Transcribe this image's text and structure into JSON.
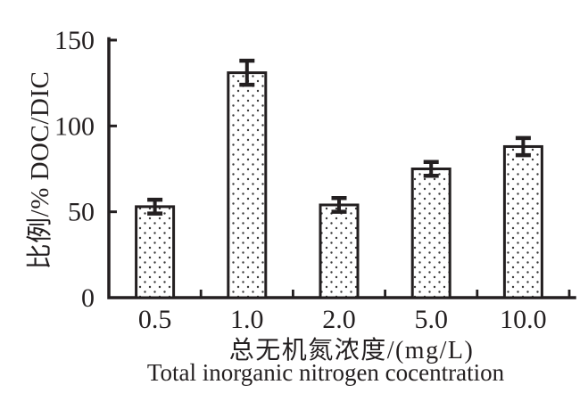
{
  "chart_data": {
    "type": "bar",
    "categories": [
      "0.5",
      "1.0",
      "2.0",
      "5.0",
      "10.0"
    ],
    "values": [
      53,
      131,
      54,
      75,
      88
    ],
    "errors": [
      4,
      7,
      4,
      4,
      5
    ],
    "title": "",
    "ylabel": "比例/% DOC/DIC",
    "xlabel_zh": "总无机氮浓度/(mg/L)",
    "xlabel_en": "Total inorganic nitrogen cocentration",
    "yticks": [
      "0",
      "50",
      "100",
      "150"
    ],
    "ylim": [
      0,
      150
    ],
    "grid": false,
    "legend": false,
    "bar_fill": "white-with-black-dot-pattern",
    "bar_fill_color": "#ffffff",
    "dot_color": "#3a3a3a",
    "line_color": "#231f20",
    "background_color": "#ffffff"
  }
}
